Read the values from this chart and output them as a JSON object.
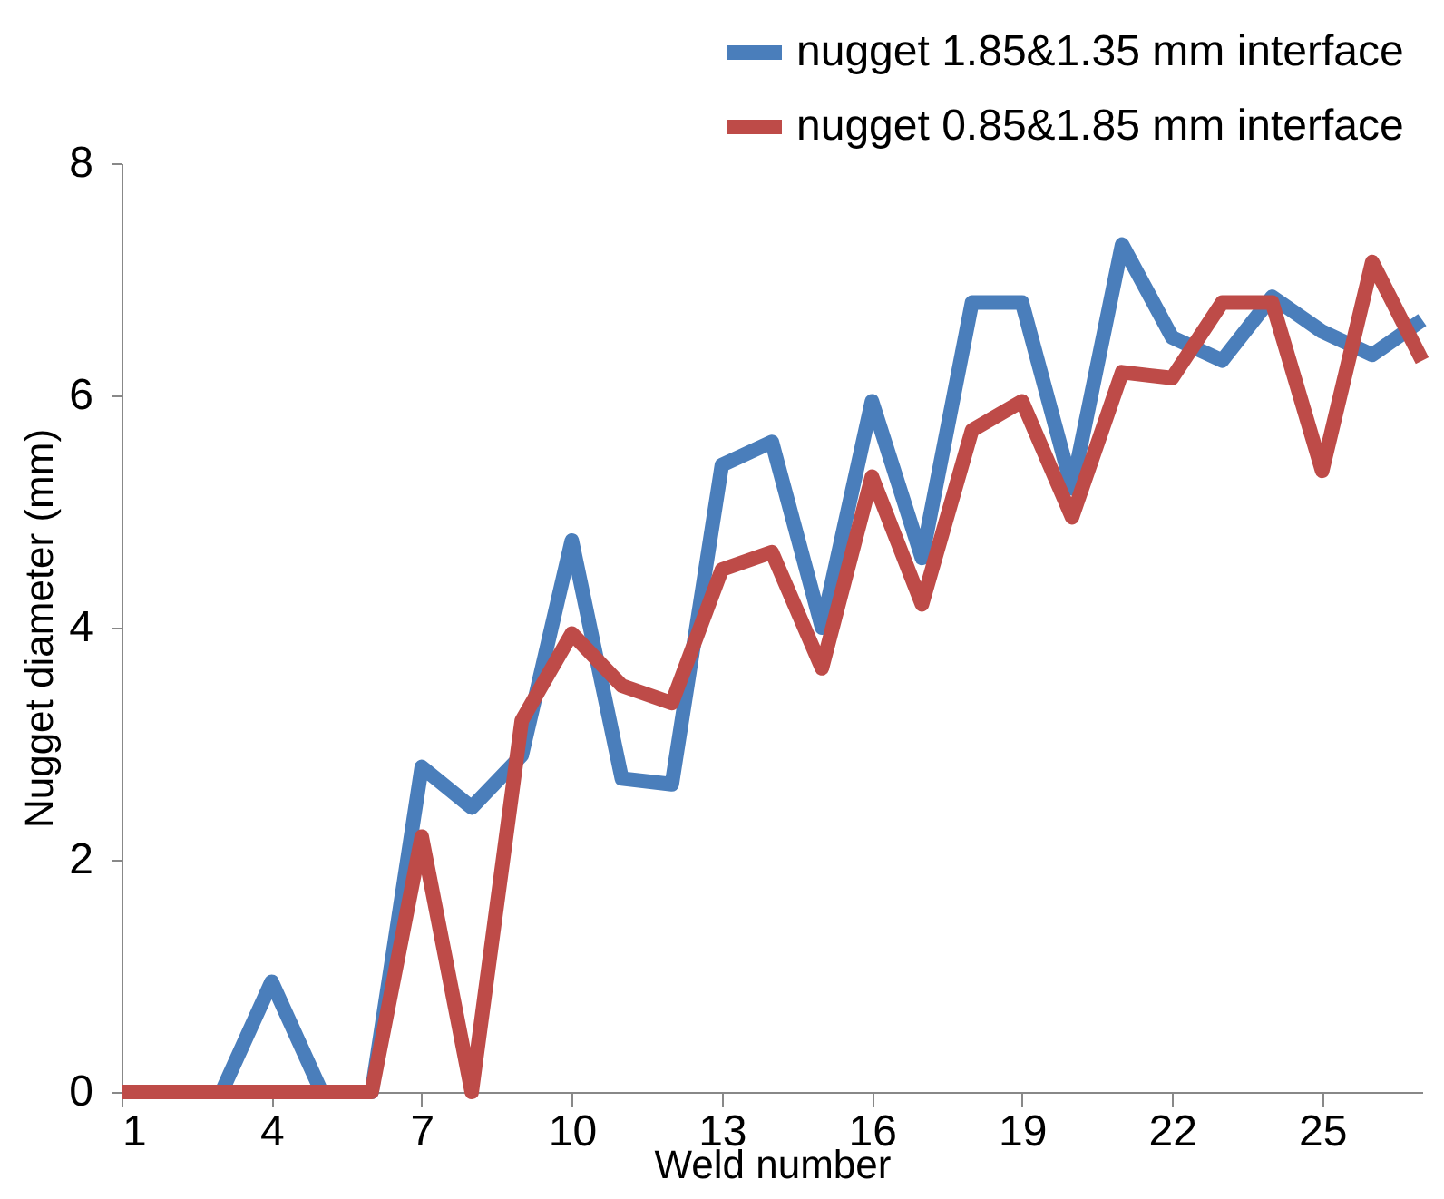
{
  "chart_data": {
    "type": "line",
    "xlabel": "Weld number",
    "ylabel": "Nugget diameter (mm)",
    "x": [
      1,
      2,
      3,
      4,
      5,
      6,
      7,
      8,
      9,
      10,
      11,
      12,
      13,
      14,
      15,
      16,
      17,
      18,
      19,
      20,
      21,
      22,
      23,
      24,
      25,
      26,
      27
    ],
    "series": [
      {
        "name": "nugget  1.85&1.35 mm interface",
        "color": "#4a7ebb",
        "values": [
          0,
          0,
          0,
          0.95,
          0,
          0,
          2.8,
          2.45,
          2.9,
          4.75,
          2.7,
          2.65,
          5.4,
          5.6,
          4.0,
          5.95,
          4.6,
          6.8,
          6.8,
          5.2,
          7.3,
          6.5,
          6.3,
          6.85,
          6.55,
          6.35,
          6.65
        ]
      },
      {
        "name": "nugget 0.85&1.85 mm interface",
        "color": "#be4b48",
        "values": [
          0,
          0,
          0,
          0,
          0,
          0,
          2.2,
          0,
          3.2,
          3.95,
          3.5,
          3.35,
          4.5,
          4.65,
          3.65,
          5.3,
          4.2,
          5.7,
          5.95,
          4.95,
          6.2,
          6.15,
          6.8,
          6.8,
          5.35,
          7.15,
          6.3
        ]
      }
    ],
    "xlim": [
      1,
      27
    ],
    "xticks": [
      1,
      4,
      7,
      10,
      13,
      16,
      19,
      22,
      25
    ],
    "ylim": [
      0,
      8
    ],
    "yticks": [
      0,
      2,
      4,
      6,
      8
    ],
    "legend": "top right",
    "line_style": "solid"
  }
}
